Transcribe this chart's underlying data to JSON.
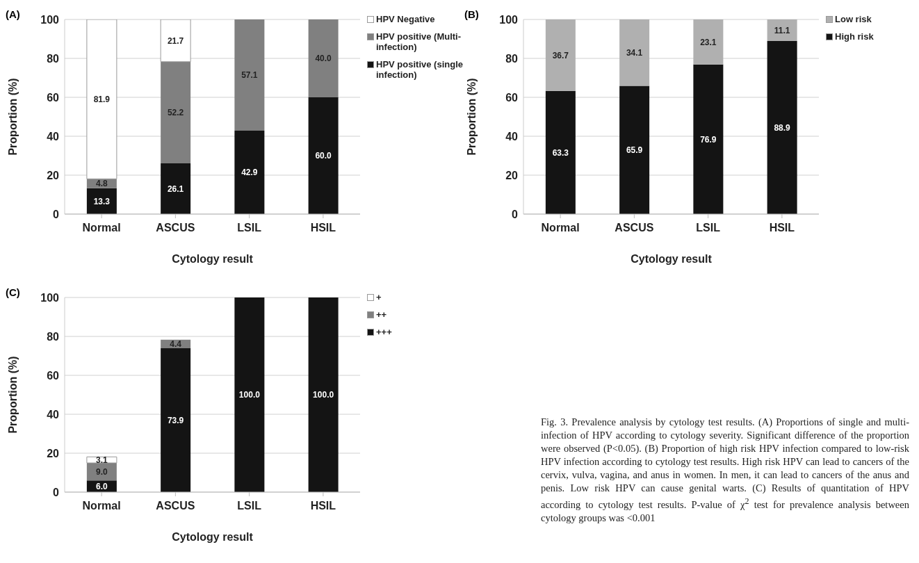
{
  "chart_data": [
    {
      "type": "bar",
      "title": "(A)",
      "xlabel": "Cytology result",
      "ylabel": "Proportion (%)",
      "categories": [
        "Normal",
        "ASCUS",
        "LSIL",
        "HSIL"
      ],
      "stacked": true,
      "grid": "y",
      "legend": "right",
      "ylim": [
        0,
        100
      ],
      "yticks": [
        0,
        20,
        40,
        60,
        80,
        100
      ],
      "series": [
        {
          "name": "HPV positive (single infection)",
          "color": "#141414",
          "values": [
            13.3,
            26.1,
            42.9,
            60.0
          ],
          "value_labels": [
            "13.3",
            "26.1",
            "42.9",
            "60.0"
          ]
        },
        {
          "name": "HPV positive (Multi-infection)",
          "color": "#808080",
          "values": [
            4.8,
            52.2,
            57.1,
            40.0
          ],
          "value_labels": [
            "4.8",
            "52.2",
            "57.1",
            "40.0"
          ]
        },
        {
          "name": "HPV Negative",
          "color": "#ffffff",
          "values": [
            81.9,
            21.7,
            null,
            null
          ],
          "value_labels": [
            "81.9",
            "21.7",
            null,
            null
          ]
        }
      ]
    },
    {
      "type": "bar",
      "title": "(B)",
      "xlabel": "Cytology result",
      "ylabel": "Proportion (%)",
      "categories": [
        "Normal",
        "ASCUS",
        "LSIL",
        "HSIL"
      ],
      "stacked": true,
      "grid": "y",
      "legend": "right",
      "ylim": [
        0,
        100
      ],
      "yticks": [
        0,
        20,
        40,
        60,
        80,
        100
      ],
      "series": [
        {
          "name": "High risk",
          "color": "#141414",
          "values": [
            63.3,
            65.9,
            76.9,
            88.9
          ],
          "value_labels": [
            "63.3",
            "65.9",
            "76.9",
            "88.9"
          ]
        },
        {
          "name": "Low risk",
          "color": "#b0b0b0",
          "values": [
            36.7,
            34.1,
            23.1,
            11.1
          ],
          "value_labels": [
            "36.7",
            "34.1",
            "23.1",
            "11.1"
          ]
        }
      ]
    },
    {
      "type": "bar",
      "title": "(C)",
      "xlabel": "Cytology result",
      "ylabel": "Proportion (%)",
      "categories": [
        "Normal",
        "ASCUS",
        "LSIL",
        "HSIL"
      ],
      "stacked": true,
      "grid": "y",
      "legend": "right",
      "ylim": [
        0,
        100
      ],
      "yticks": [
        0,
        20,
        40,
        60,
        80,
        100
      ],
      "series": [
        {
          "name": "+++",
          "color": "#141414",
          "values": [
            6.0,
            73.9,
            100.0,
            100.0
          ],
          "value_labels": [
            "6.0",
            "73.9",
            "100.0",
            "100.0"
          ]
        },
        {
          "name": "++",
          "color": "#808080",
          "values": [
            9.0,
            4.4,
            null,
            null
          ],
          "value_labels": [
            "9.0",
            "4.4",
            null,
            null
          ]
        },
        {
          "name": "+",
          "color": "#ffffff",
          "values": [
            3.1,
            null,
            null,
            null
          ],
          "value_labels": [
            "3.1",
            null,
            null,
            null
          ]
        }
      ],
      "annotations": [
        "Fig. 3. Prevalence analysis by cytology test results. (A) Proportions of single and multi-infection of HPV according to cytology severity. Significant difference of the proportion were observed (P<0.05). (B) Proportion of high risk HPV infection compared to low-risk HPV infection according to cytology test results. High risk HPV can lead to cancers of the cervix, vulva, vagina, and anus in women. In men, it can lead to cancers of the anus and penis. Low risk HPV can cause genital warts. (C) Results of quantitation of HPV according to cytology test results. P-value of χ$^{2}$ test for prevalence analysis between cytology groups was <0.001"
      ]
    }
  ]
}
